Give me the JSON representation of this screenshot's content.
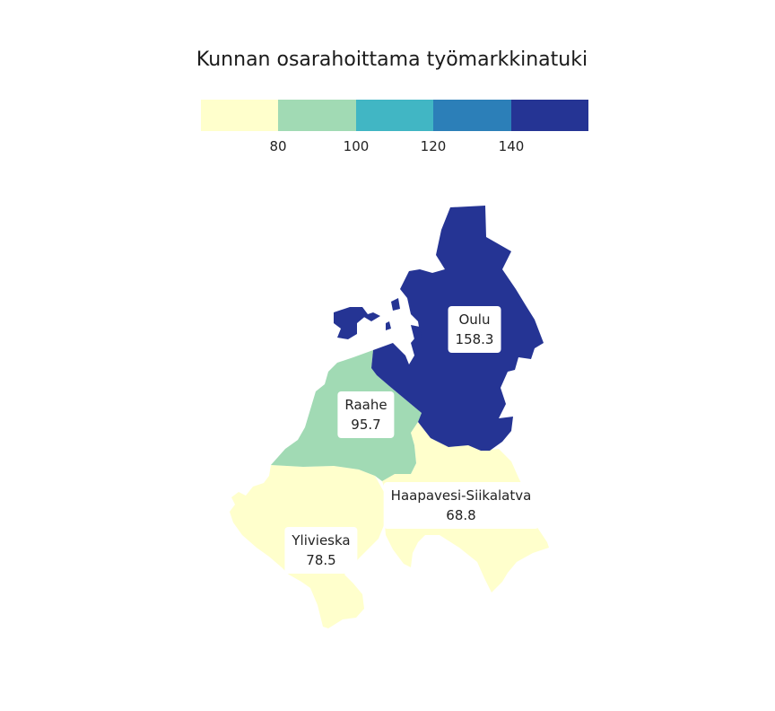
{
  "title": "Kunnan osarahoittama työmarkkinatuki",
  "legend": {
    "colors": [
      "#ffffcc",
      "#a1dab4",
      "#41b6c4",
      "#2c7fb8",
      "#253494"
    ],
    "ticks": [
      "80",
      "100",
      "120",
      "140"
    ]
  },
  "regions": [
    {
      "name": "Oulu",
      "value": "158.3",
      "color": "#253494"
    },
    {
      "name": "Raahe",
      "value": "95.7",
      "color": "#a1dab4"
    },
    {
      "name": "Haapavesi-Siikalatva",
      "value": "68.8",
      "color": "#ffffcc"
    },
    {
      "name": "Ylivieska",
      "value": "78.5",
      "color": "#ffffcc"
    }
  ]
}
